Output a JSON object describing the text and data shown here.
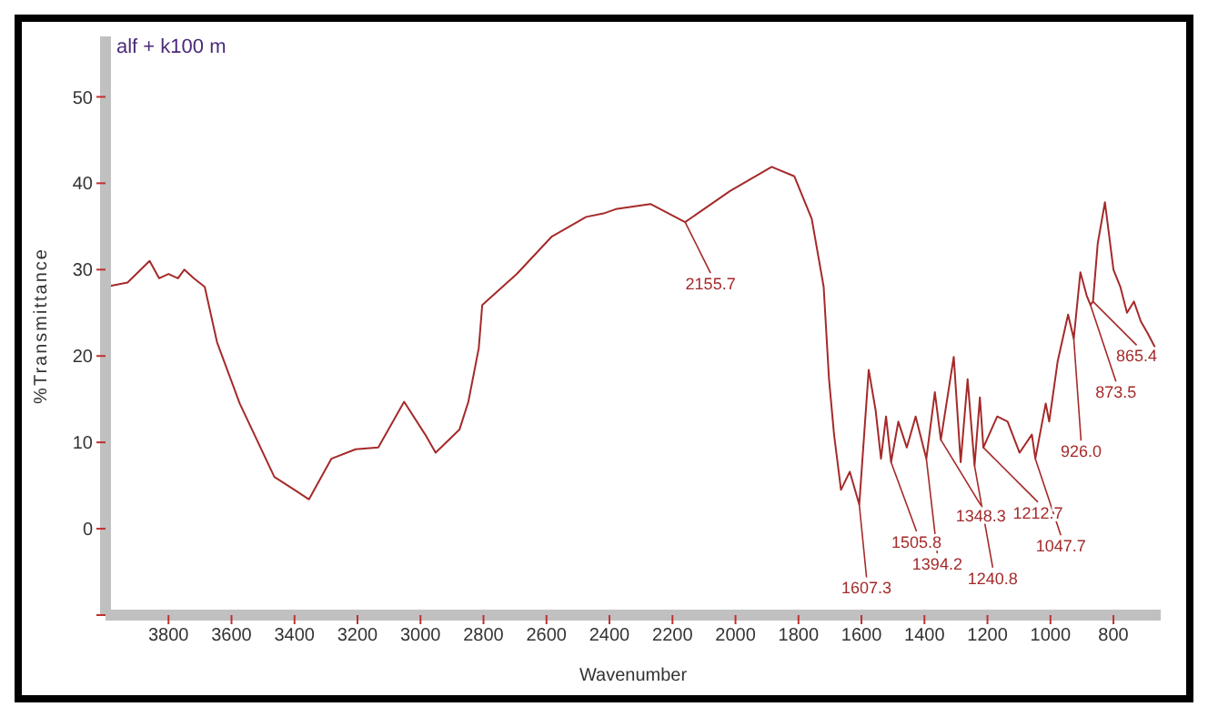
{
  "chart_data": {
    "type": "line",
    "title": "alf + k100 m",
    "xlabel": "Wavenumber",
    "ylabel": "%Transmittance",
    "x": [
      4000,
      3930,
      3860,
      3830,
      3800,
      3770,
      3750,
      3720,
      3685,
      3646,
      3574,
      3464,
      3400,
      3354,
      3283,
      3206,
      3134,
      3052,
      2985,
      2952,
      2876,
      2848,
      2815,
      2804,
      2694,
      2584,
      2474,
      2419,
      2380,
      2270,
      2160,
      2017,
      1885,
      1813,
      1758,
      1720,
      1703,
      1687,
      1665,
      1637,
      1607,
      1577,
      1555,
      1538,
      1522,
      1506,
      1483,
      1456,
      1428,
      1394,
      1367,
      1348,
      1307,
      1285,
      1263,
      1241,
      1224,
      1213,
      1169,
      1136,
      1098,
      1059,
      1048,
      1015,
      1004,
      977,
      944,
      926,
      905,
      885,
      873,
      865,
      850,
      827,
      800,
      778,
      757,
      735,
      713,
      691,
      668
    ],
    "series": [
      {
        "color": "#a52a2a",
        "values": [
          28,
          28.5,
          31,
          29,
          29.5,
          29,
          30,
          29,
          28,
          21.6,
          14.5,
          6,
          4.5,
          3.4,
          8.1,
          9.2,
          9.4,
          14.7,
          10.9,
          8.8,
          11.5,
          14.7,
          20.9,
          25.9,
          29.5,
          33.8,
          36.1,
          36.5,
          37,
          37.6,
          35.5,
          39.1,
          41.9,
          40.8,
          35.9,
          28,
          17.3,
          10.9,
          4.5,
          6.6,
          2.8,
          18.4,
          13.7,
          8.1,
          13,
          7.7,
          12.4,
          9.4,
          13,
          8.1,
          15.8,
          10.3,
          19.9,
          7.7,
          17.3,
          7.3,
          15.2,
          9.4,
          13,
          12.4,
          8.8,
          10.9,
          8.1,
          14.5,
          12.4,
          19.4,
          24.8,
          22,
          29.7,
          27,
          25.9,
          26.3,
          33,
          37.8,
          30,
          28,
          25,
          26.3,
          24,
          22.6,
          21
        ]
      }
    ],
    "xlim": [
      4000,
      650
    ],
    "xticks": [
      3800,
      3600,
      3400,
      3200,
      3000,
      2800,
      2600,
      2400,
      2200,
      2000,
      1800,
      1600,
      1400,
      1200,
      1000,
      800
    ],
    "ylim": [
      -10,
      57
    ],
    "yticks": [
      {
        "value": -10,
        "label": null
      },
      0,
      10,
      20,
      30,
      40,
      50
    ],
    "grid": false,
    "legend": false,
    "marker": "none",
    "line_style": "solid",
    "annotations": [
      {
        "text": "2155.7",
        "x": 2160,
        "y": 35.5
      },
      {
        "text": "1607.3",
        "x": 1607,
        "y": 2.8
      },
      {
        "text": "1505.8",
        "x": 1506,
        "y": 7.7
      },
      {
        "text": "1394.2",
        "x": 1394,
        "y": 8.1
      },
      {
        "text": "1348.3",
        "x": 1348,
        "y": 10.3
      },
      {
        "text": "1240.8",
        "x": 1241,
        "y": 7.3
      },
      {
        "text": "1212.7",
        "x": 1213,
        "y": 9.4
      },
      {
        "text": "1047.7",
        "x": 1048,
        "y": 8.1
      },
      {
        "text": "926.0",
        "x": 926,
        "y": 22
      },
      {
        "text": "873.5",
        "x": 873,
        "y": 25.9
      },
      {
        "text": "865.4",
        "x": 865,
        "y": 26.3
      }
    ]
  }
}
